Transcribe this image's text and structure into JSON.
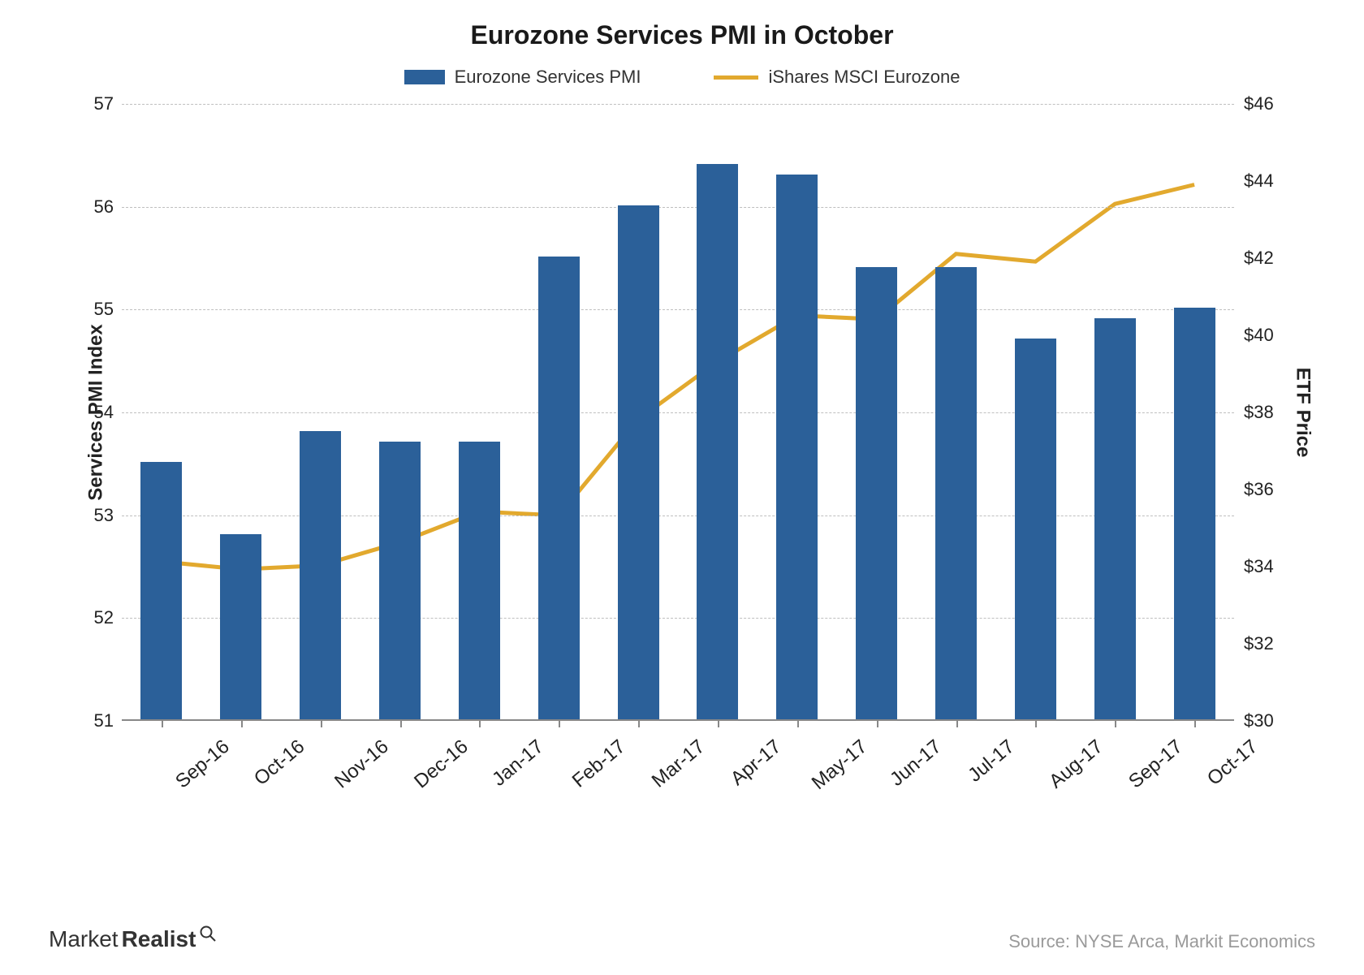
{
  "chart": {
    "type": "bar+line",
    "title": "Eurozone Services PMI in October",
    "title_fontsize": 32,
    "background_color": "#ffffff",
    "grid_color": "#bfbfbf",
    "legend": {
      "bar_label": "Eurozone Services PMI",
      "line_label": "iShares MSCI Eurozone",
      "fontsize": 22
    },
    "categories": [
      "Sep-16",
      "Oct-16",
      "Nov-16",
      "Dec-16",
      "Jan-17",
      "Feb-17",
      "Mar-17",
      "Apr-17",
      "May-17",
      "Jun-17",
      "Jul-17",
      "Aug-17",
      "Sep-17",
      "Oct-17"
    ],
    "bar_series": {
      "name": "Eurozone Services PMI",
      "values": [
        53.5,
        52.8,
        53.8,
        53.7,
        53.7,
        55.5,
        56.0,
        56.4,
        56.3,
        55.4,
        55.4,
        54.7,
        54.9,
        55.0
      ],
      "color": "#2b6099",
      "bar_width_ratio": 0.52
    },
    "line_series": {
      "name": "iShares MSCI Eurozone",
      "values": [
        34.1,
        33.9,
        34.0,
        34.6,
        35.4,
        35.3,
        37.8,
        39.3,
        40.5,
        40.4,
        42.1,
        41.9,
        43.4,
        43.9
      ],
      "color": "#e2a92e",
      "line_width": 5
    },
    "y_left": {
      "label": "Services PMI Index",
      "min": 51,
      "max": 57,
      "step": 1,
      "fontsize": 22,
      "label_fontsize": 24
    },
    "y_right": {
      "label": "ETF Price",
      "min": 30,
      "max": 46,
      "step": 2,
      "prefix": "$",
      "fontsize": 22,
      "label_fontsize": 24
    },
    "x_label_fontsize": 24,
    "x_label_rotation_deg": -40
  },
  "footer": {
    "brand_prefix": "Market",
    "brand_bold": "Realist",
    "source": "Source: NYSE Arca, Markit Economics"
  }
}
